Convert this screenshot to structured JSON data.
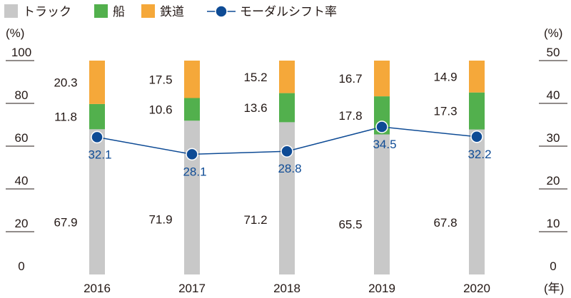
{
  "chart_data": {
    "type": "bar",
    "stacked": true,
    "categories": [
      "2016",
      "2017",
      "2018",
      "2019",
      "2020"
    ],
    "x_unit": "(年)",
    "legend": {
      "position": "top-left",
      "items": [
        {
          "label": "トラック",
          "key": "truck"
        },
        {
          "label": "船",
          "key": "ship"
        },
        {
          "label": "鉄道",
          "key": "rail"
        },
        {
          "label": "モーダルシフト率",
          "key": "modal"
        }
      ]
    },
    "series": [
      {
        "name": "トラック",
        "key": "truck",
        "color": "#c8c8c8",
        "values": [
          67.9,
          71.9,
          71.2,
          65.5,
          67.8
        ],
        "labels": [
          "67.9",
          "71.9",
          "71.2",
          "65.5",
          "67.8"
        ]
      },
      {
        "name": "船",
        "key": "ship",
        "color": "#52b04d",
        "values": [
          11.8,
          10.6,
          13.6,
          17.8,
          17.3
        ],
        "labels": [
          "11.8",
          "10.6",
          "13.6",
          "17.8",
          "17.3"
        ]
      },
      {
        "name": "鉄道",
        "key": "rail",
        "color": "#f5a83a",
        "values": [
          20.3,
          17.5,
          15.2,
          16.7,
          14.9
        ],
        "labels": [
          "20.3",
          "17.5",
          "15.2",
          "16.7",
          "14.9"
        ]
      }
    ],
    "line_series": {
      "name": "モーダルシフト率",
      "key": "modal",
      "color": "#0e4b95",
      "axis": "right",
      "values": [
        32.1,
        28.1,
        28.8,
        34.5,
        32.2
      ],
      "labels": [
        "32.1",
        "28.1",
        "28.8",
        "34.5",
        "32.2"
      ]
    },
    "y_left": {
      "unit": "(%)",
      "ylim": [
        0,
        100
      ],
      "ticks": [
        "0",
        "20",
        "40",
        "60",
        "80",
        "100"
      ]
    },
    "y_right": {
      "unit": "(%)",
      "ylim": [
        0,
        50
      ],
      "ticks": [
        "0",
        "10",
        "20",
        "30",
        "40",
        "50"
      ]
    },
    "grid": false
  }
}
